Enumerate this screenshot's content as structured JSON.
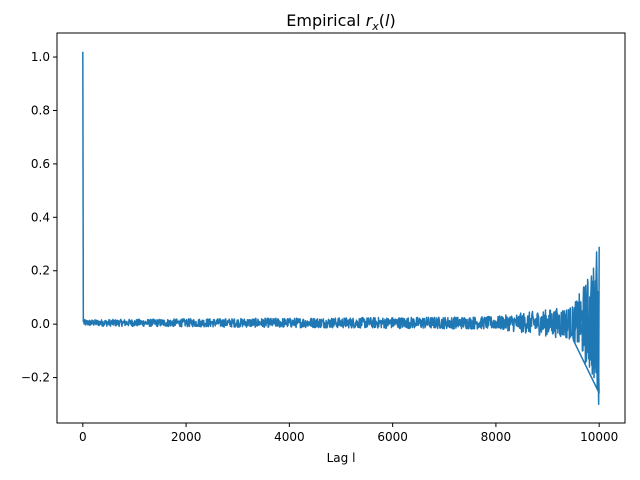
{
  "chart_data": {
    "type": "line",
    "title_main": "Empirical ",
    "title_var": "r",
    "title_sub": "x",
    "title_paren": "(",
    "title_lag": "l",
    "title_close": ")",
    "xlabel": "Lag l",
    "ylabel": "",
    "xlim": [
      -500,
      10500
    ],
    "ylim": [
      -0.37,
      1.09
    ],
    "xticks": [
      0,
      2000,
      4000,
      6000,
      8000,
      10000
    ],
    "xtick_labels": [
      "0",
      "2000",
      "4000",
      "6000",
      "8000",
      "10000"
    ],
    "yticks": [
      -0.2,
      0.0,
      0.2,
      0.4,
      0.6,
      0.8,
      1.0
    ],
    "ytick_labels": [
      "−0.2",
      "0.0",
      "0.2",
      "0.4",
      "0.6",
      "0.8",
      "1.0"
    ],
    "grid": false,
    "line_color": "#1f77b4",
    "series": [
      {
        "x": [
          0,
          10,
          20,
          100,
          500,
          1000,
          1500,
          2000,
          2500,
          3000,
          3500,
          4000,
          4500,
          5000,
          5500,
          6000,
          6500,
          7000,
          7500,
          8000,
          8500,
          9000,
          9300,
          9500,
          9600,
          9700,
          9750,
          9800,
          9850,
          9900,
          9950,
          9990,
          10000
        ],
        "y": [
          1.02,
          0.01,
          -0.01,
          0.02,
          0.0,
          0.01,
          -0.01,
          0.01,
          0.0,
          0.02,
          -0.01,
          0.01,
          0.0,
          0.02,
          -0.01,
          0.02,
          0.0,
          0.03,
          -0.01,
          0.02,
          0.03,
          -0.02,
          0.04,
          -0.06,
          0.05,
          -0.08,
          0.1,
          -0.12,
          0.18,
          -0.2,
          0.27,
          -0.3,
          0.29
        ]
      }
    ]
  }
}
